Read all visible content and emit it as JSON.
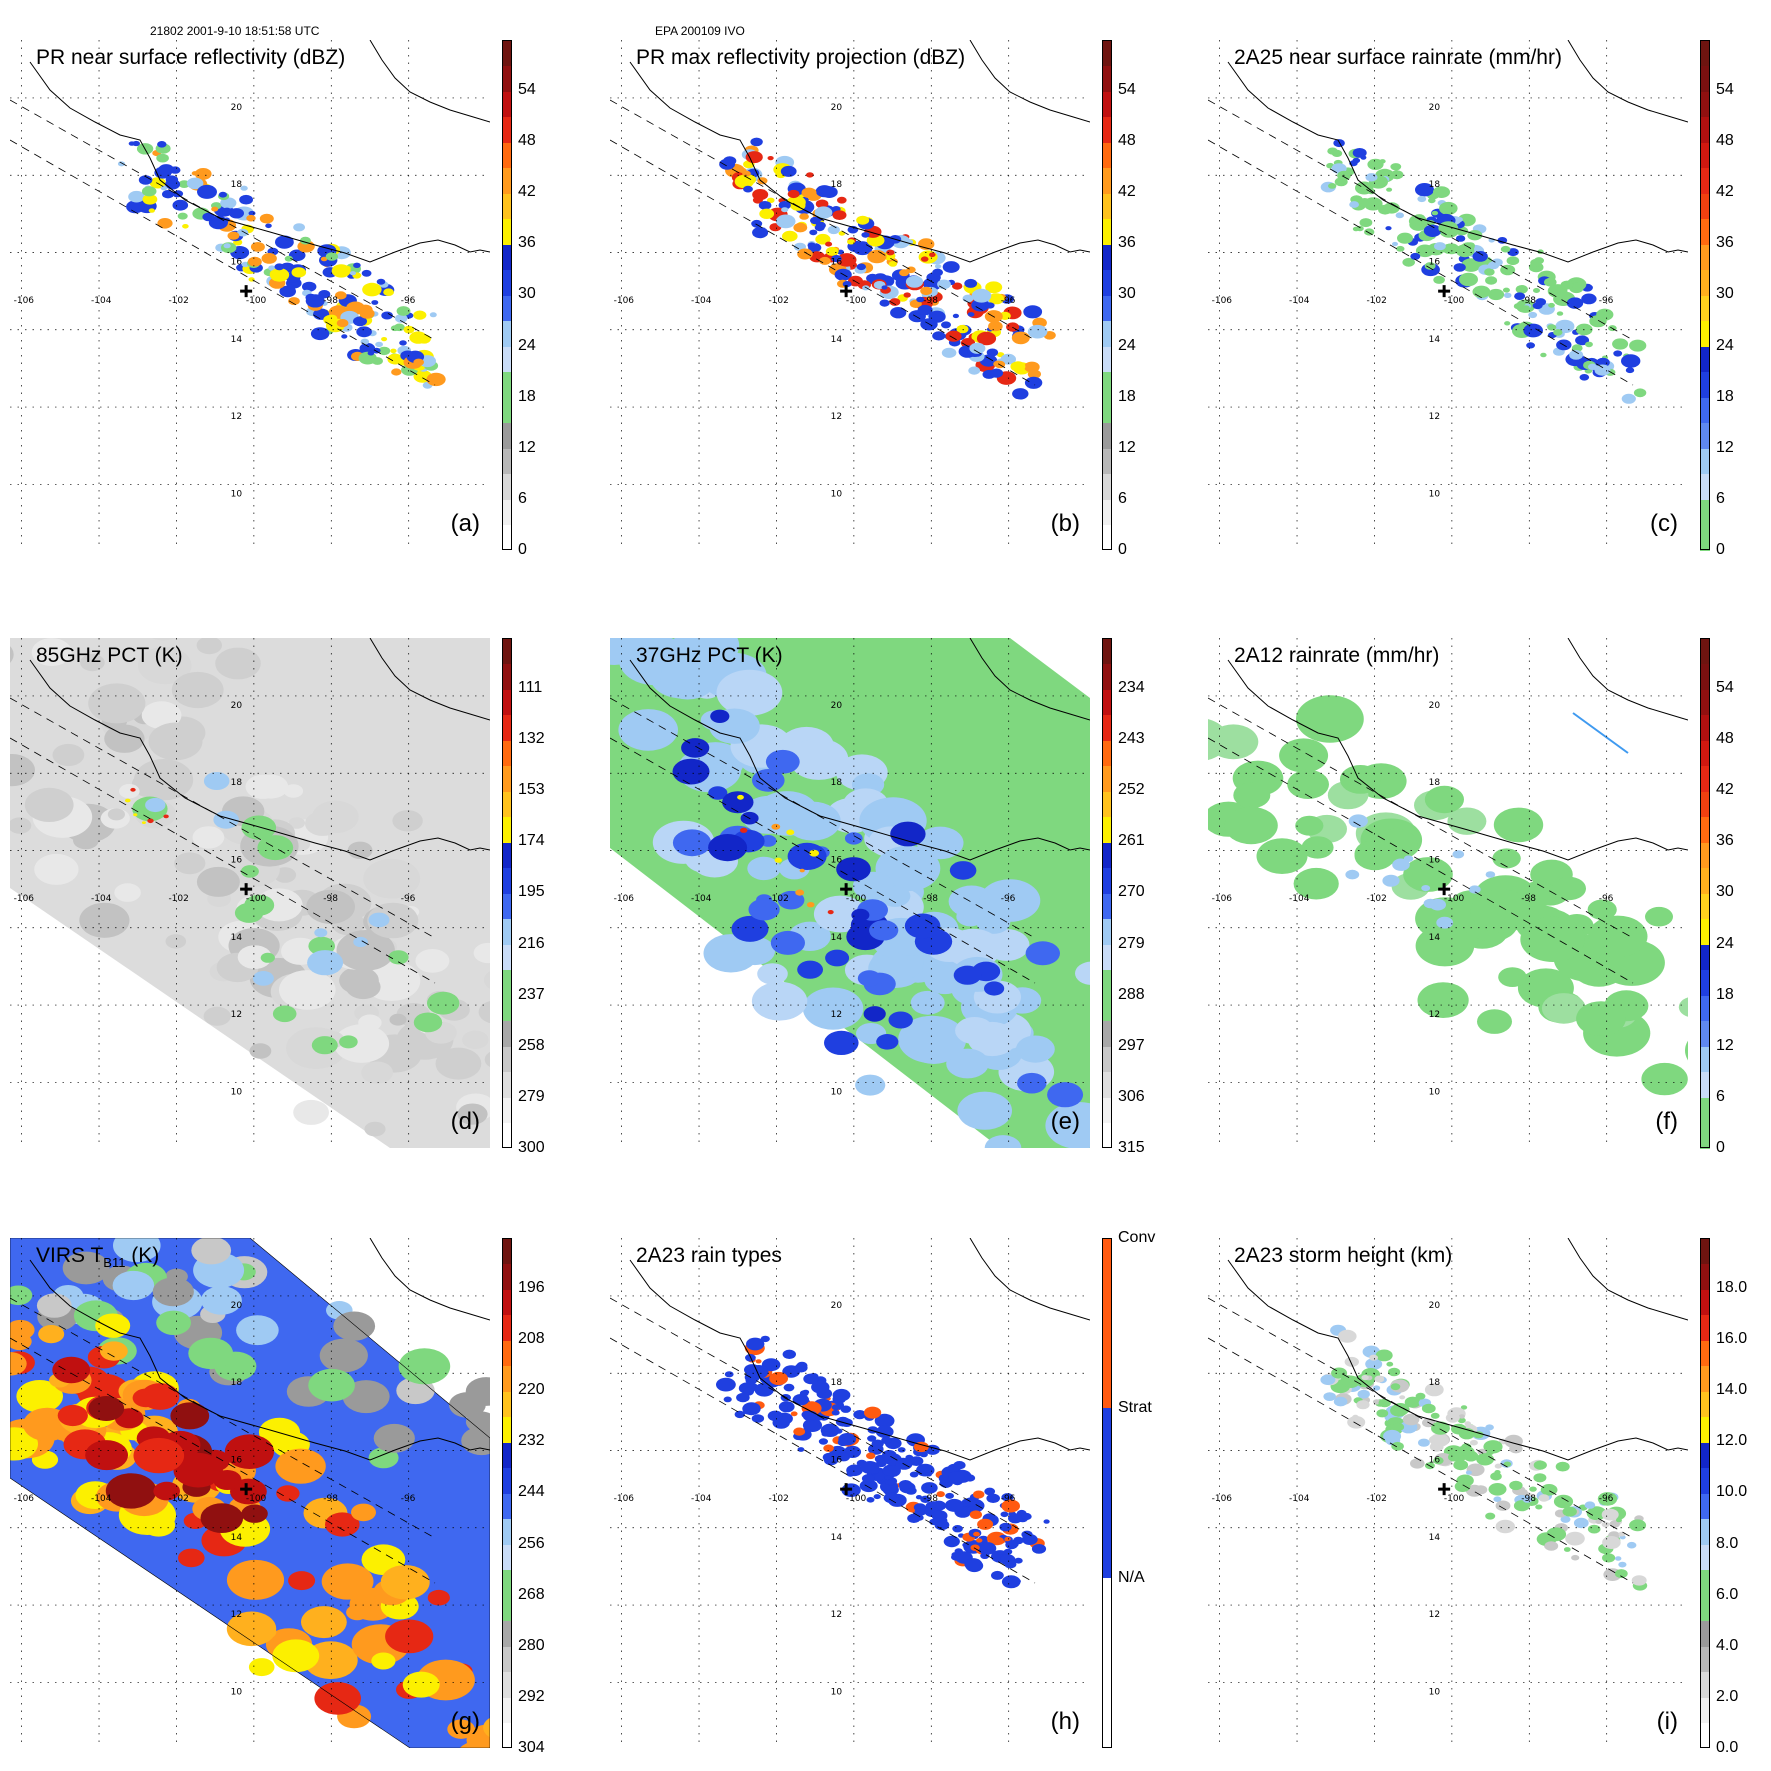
{
  "header": {
    "left": "21802 2001-9-10 18:51:58 UTC",
    "center": "EPA 200109 IVO"
  },
  "map": {
    "lon_labels": [
      "-106",
      "-104",
      "-102",
      "-100",
      "-98",
      "-96"
    ],
    "lat_labels": [
      "20",
      "18",
      "16",
      "14",
      "12",
      "10"
    ],
    "storm_center": {
      "lon": -100.2,
      "lat": 15.0
    }
  },
  "colors": {
    "green": "#7fd87f",
    "lightblue": "#9fcaf3",
    "blue": "#1f3fe0",
    "yellow": "#fcf000",
    "orange": "#ff9a1e",
    "red": "#e62814",
    "darkred": "#6e1410"
  },
  "panels": [
    {
      "id": "a",
      "title": "PR near surface reflectivity (dBZ)",
      "label": "(a)",
      "ticks": [
        "54",
        "48",
        "42",
        "36",
        "30",
        "24",
        "18",
        "12",
        "6",
        "0"
      ]
    },
    {
      "id": "b",
      "title": "PR max reflectivity projection (dBZ)",
      "label": "(b)",
      "ticks": [
        "54",
        "48",
        "42",
        "36",
        "30",
        "24",
        "18",
        "12",
        "6",
        "0"
      ]
    },
    {
      "id": "c",
      "title": "2A25 near surface rainrate (mm/hr)",
      "label": "(c)",
      "ticks": [
        "54",
        "48",
        "42",
        "36",
        "30",
        "24",
        "18",
        "12",
        "6",
        "0"
      ]
    },
    {
      "id": "d",
      "title": "85GHz PCT (K)",
      "label": "(d)",
      "ticks": [
        "111",
        "132",
        "153",
        "174",
        "195",
        "216",
        "237",
        "258",
        "279",
        "300"
      ]
    },
    {
      "id": "e",
      "title": "37GHz PCT (K)",
      "label": "(e)",
      "ticks": [
        "234",
        "243",
        "252",
        "261",
        "270",
        "279",
        "288",
        "297",
        "306",
        "315"
      ]
    },
    {
      "id": "f",
      "title": "2A12 rainrate (mm/hr)",
      "label": "(f)",
      "ticks": [
        "54",
        "48",
        "42",
        "36",
        "30",
        "24",
        "18",
        "12",
        "6",
        "0"
      ]
    },
    {
      "id": "g",
      "title": "VIRS T",
      "title_sub": "B11",
      "title_end": " (K)",
      "label": "(g)",
      "ticks": [
        "196",
        "208",
        "220",
        "232",
        "244",
        "256",
        "268",
        "280",
        "292",
        "304"
      ]
    },
    {
      "id": "h",
      "title": "2A23 rain types",
      "label": "(h)",
      "ticks": [
        "Conv",
        "Strat",
        "N/A"
      ]
    },
    {
      "id": "i",
      "title": "2A23 storm height (km)",
      "label": "(i)",
      "ticks": [
        "18.0",
        "16.0",
        "14.0",
        "12.0",
        "10.0",
        "8.0",
        "6.0",
        "4.0",
        "2.0",
        "0.0"
      ]
    }
  ]
}
